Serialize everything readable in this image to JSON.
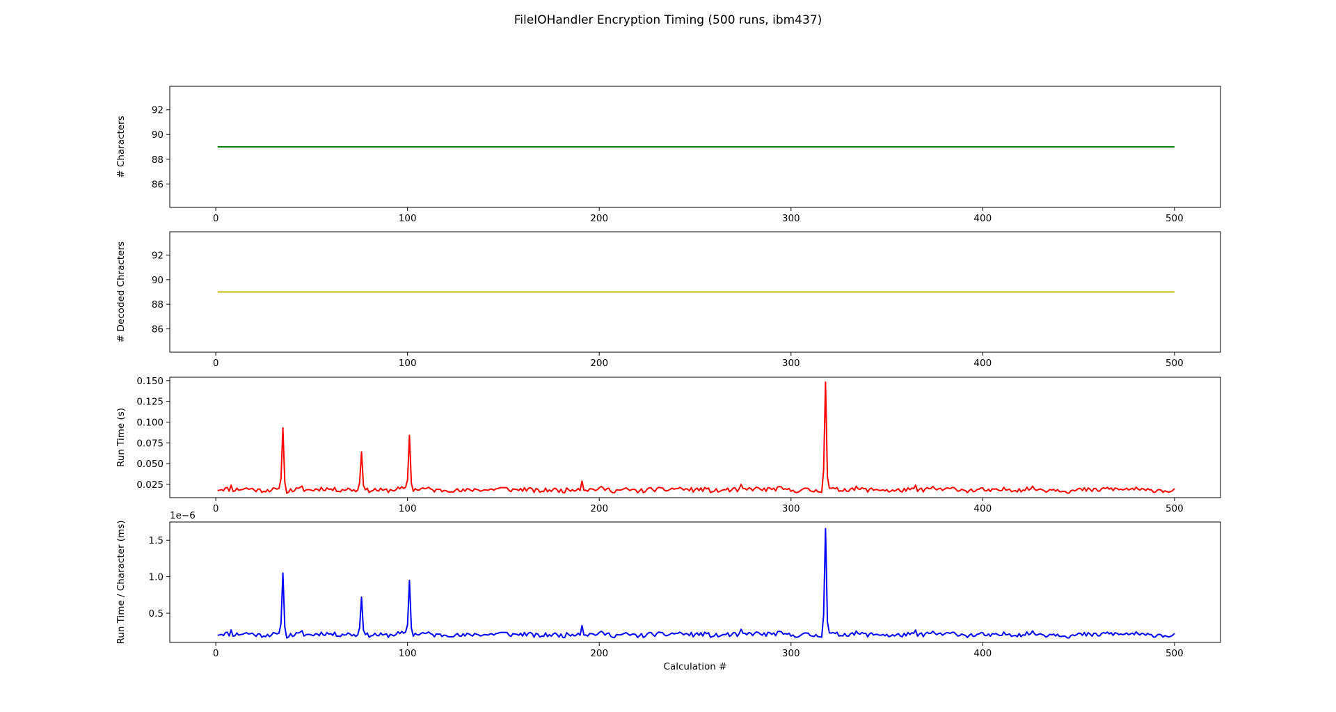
{
  "figure": {
    "title": "FileIOHandler Encryption Timing (500 runs, ibm437)"
  },
  "chart_data": [
    {
      "type": "line",
      "xlabel": "",
      "ylabel": "# Characters",
      "xlim": [
        -24,
        524
      ],
      "ylim": [
        84.1,
        93.9
      ],
      "xticks": [
        0,
        100,
        200,
        300,
        400,
        500
      ],
      "yticks": [
        86,
        88,
        90,
        92
      ],
      "ytick_labels": [
        "86",
        "88",
        "90",
        "92"
      ],
      "offset_text": "",
      "color": "#008000",
      "series": [
        {
          "kind": "constant",
          "x_start": 1,
          "x_end": 500,
          "value": 89
        }
      ]
    },
    {
      "type": "line",
      "xlabel": "",
      "ylabel": "# Decoded Chracters",
      "xlim": [
        -24,
        524
      ],
      "ylim": [
        84.1,
        93.9
      ],
      "xticks": [
        0,
        100,
        200,
        300,
        400,
        500
      ],
      "yticks": [
        86,
        88,
        90,
        92
      ],
      "ytick_labels": [
        "86",
        "88",
        "90",
        "92"
      ],
      "offset_text": "",
      "color": "#bfbf00",
      "series": [
        {
          "kind": "constant",
          "x_start": 1,
          "x_end": 500,
          "value": 89
        }
      ]
    },
    {
      "type": "line",
      "xlabel": "",
      "ylabel": "Run Time (s)",
      "xlim": [
        -24,
        524
      ],
      "ylim": [
        0.009,
        0.154
      ],
      "xticks": [
        0,
        100,
        200,
        300,
        400,
        500
      ],
      "yticks": [
        0.025,
        0.05,
        0.075,
        0.1,
        0.125,
        0.15
      ],
      "ytick_labels": [
        "0.025",
        "0.050",
        "0.075",
        "0.100",
        "0.125",
        "0.150"
      ],
      "offset_text": "",
      "color": "#ff0000",
      "series": [
        {
          "kind": "noisy",
          "x_start": 1,
          "x_end": 500,
          "baseline": 0.0185,
          "jitter": 0.0035,
          "seed": 11,
          "spikes": [
            [
              8,
              0.024
            ],
            [
              35,
              0.093
            ],
            [
              45,
              0.023
            ],
            [
              76,
              0.064
            ],
            [
              101,
              0.084
            ],
            [
              191,
              0.029
            ],
            [
              274,
              0.025
            ],
            [
              318,
              0.148
            ],
            [
              365,
              0.024
            ]
          ]
        }
      ]
    },
    {
      "type": "line",
      "xlabel": "Calculation #",
      "ylabel": "Run Time / Character (ms)",
      "xlim": [
        -24,
        524
      ],
      "ylim": [
        1e-07,
        1.75e-06
      ],
      "xticks": [
        0,
        100,
        200,
        300,
        400,
        500
      ],
      "yticks": [
        5e-07,
        1e-06,
        1.5e-06
      ],
      "ytick_labels": [
        "0.5",
        "1.0",
        "1.5"
      ],
      "offset_text": "1e−6",
      "color": "#0000ff",
      "series": [
        {
          "kind": "noisy",
          "x_start": 1,
          "x_end": 500,
          "baseline": 2.08e-07,
          "jitter": 4e-08,
          "seed": 11,
          "spikes": [
            [
              8,
              2.7e-07
            ],
            [
              35,
              1.05e-06
            ],
            [
              45,
              2.6e-07
            ],
            [
              76,
              7.2e-07
            ],
            [
              101,
              9.5e-07
            ],
            [
              191,
              3.3e-07
            ],
            [
              274,
              2.8e-07
            ],
            [
              318,
              1.66e-06
            ],
            [
              365,
              2.7e-07
            ]
          ]
        }
      ]
    }
  ]
}
